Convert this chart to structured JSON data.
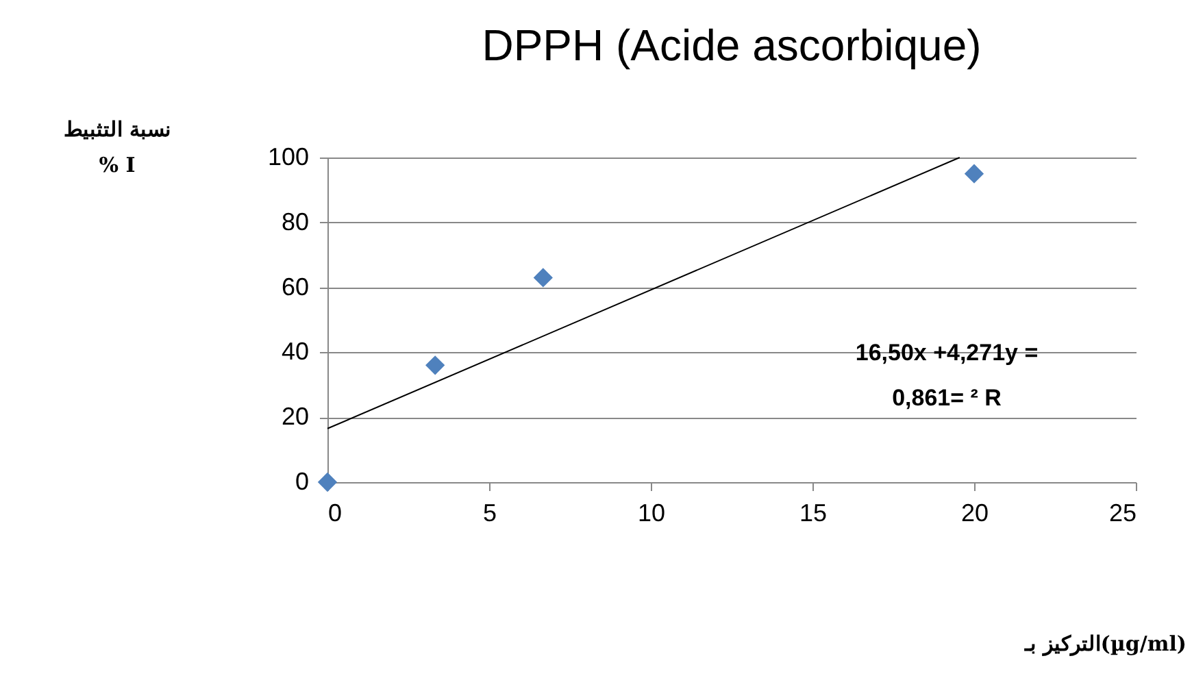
{
  "chart_data": {
    "type": "scatter",
    "title": "DPPH (Acide ascorbique)",
    "ylabel": "نسبة التثبيط\n% I",
    "annotations": [
      "16,50x +4,271y =",
      "0,861= ² R",
      "التركيز بـ(µg/ml)"
    ],
    "series": [
      {
        "type": "scatter",
        "color": "#4f81bd",
        "marker": "diamond",
        "x": [
          0,
          3.33,
          6.67,
          20
        ],
        "values": [
          0,
          36,
          63,
          95
        ]
      },
      {
        "type": "line",
        "color": "#000000",
        "x": [
          0,
          19.55
        ],
        "values": [
          16.5,
          100
        ]
      }
    ],
    "xlim": [
      0,
      25
    ],
    "xticks": [
      0,
      5,
      10,
      15,
      20,
      25
    ],
    "ylim": [
      0,
      100
    ],
    "yticks": [
      0,
      20,
      40,
      60,
      80,
      100
    ],
    "grid": "y"
  }
}
